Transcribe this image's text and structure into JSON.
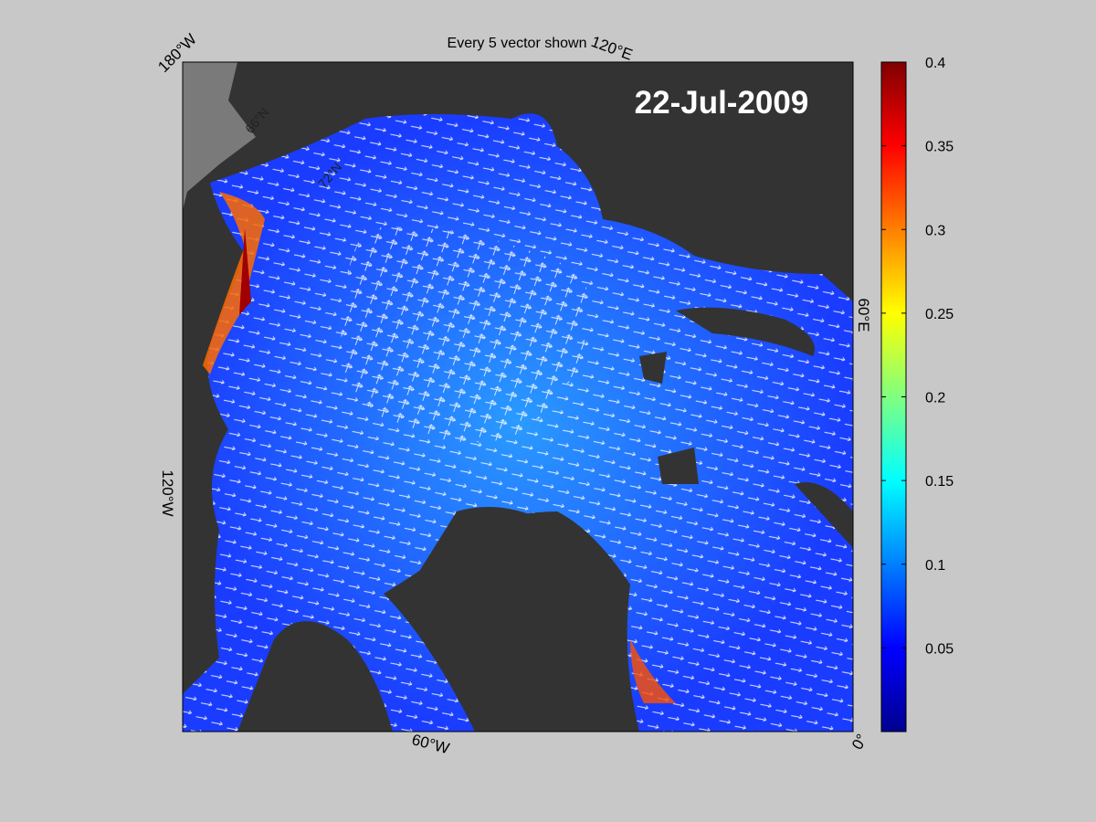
{
  "figure": {
    "title": "Every 5 vector shown",
    "date": "22-Jul-2009",
    "longitude_labels": [
      "180°W",
      "120°E",
      "60°E",
      "0°",
      "60°W",
      "120°W"
    ],
    "latitude_labels": [
      "66°N",
      "72°N"
    ],
    "colorbar": {
      "clim": [
        0,
        0.4
      ],
      "ticks": [
        0.05,
        0.1,
        0.15,
        0.2,
        0.25,
        0.3,
        0.35,
        0.4
      ]
    }
  }
}
